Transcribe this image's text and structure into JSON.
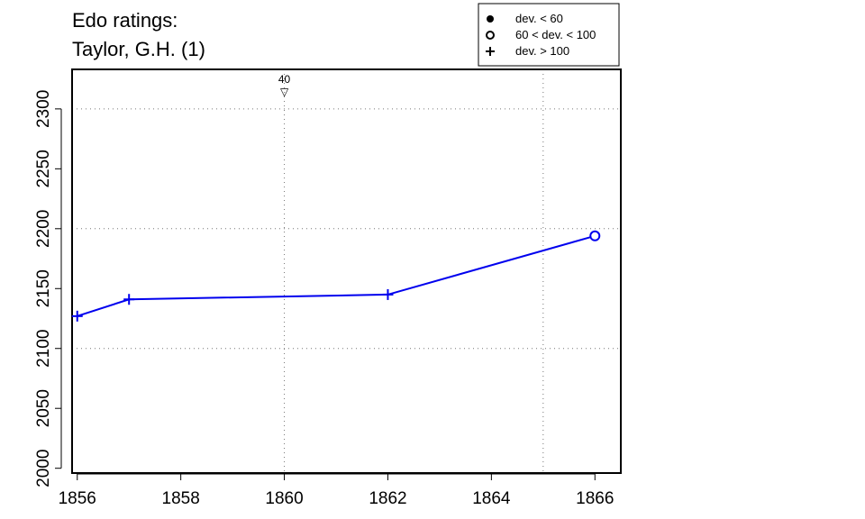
{
  "chart_data": {
    "type": "line",
    "title_lines": [
      "Edo ratings:",
      "Taylor, G.H. (1)"
    ],
    "xlabel": "",
    "ylabel": "",
    "xlim": [
      1855.9,
      1866.5
    ],
    "ylim": [
      1996,
      2333
    ],
    "x_ticks": [
      1856,
      1858,
      1860,
      1862,
      1864,
      1866
    ],
    "y_ticks": [
      2000,
      2050,
      2100,
      2150,
      2200,
      2250,
      2300
    ],
    "grid": {
      "style": "dotted",
      "horizontal": [
        2100,
        2200,
        2300
      ],
      "vertical": [
        1860,
        1865
      ]
    },
    "series": [
      {
        "color": "#0000ee",
        "points": [
          {
            "x": 1856,
            "y": 2127,
            "marker": "plus"
          },
          {
            "x": 1857,
            "y": 2141,
            "marker": "plus"
          },
          {
            "x": 1862,
            "y": 2145,
            "marker": "plus"
          },
          {
            "x": 1866,
            "y": 2194,
            "marker": "circle"
          }
        ]
      }
    ],
    "annotations": [
      {
        "x": 1860,
        "label": "40",
        "symbol": "▽"
      }
    ],
    "legend": {
      "placement": "top-right",
      "entries": [
        {
          "marker": "dot",
          "label": "dev. < 60"
        },
        {
          "marker": "circle",
          "label": "60 < dev. < 100"
        },
        {
          "marker": "plus",
          "label": "dev. > 100"
        }
      ]
    }
  }
}
